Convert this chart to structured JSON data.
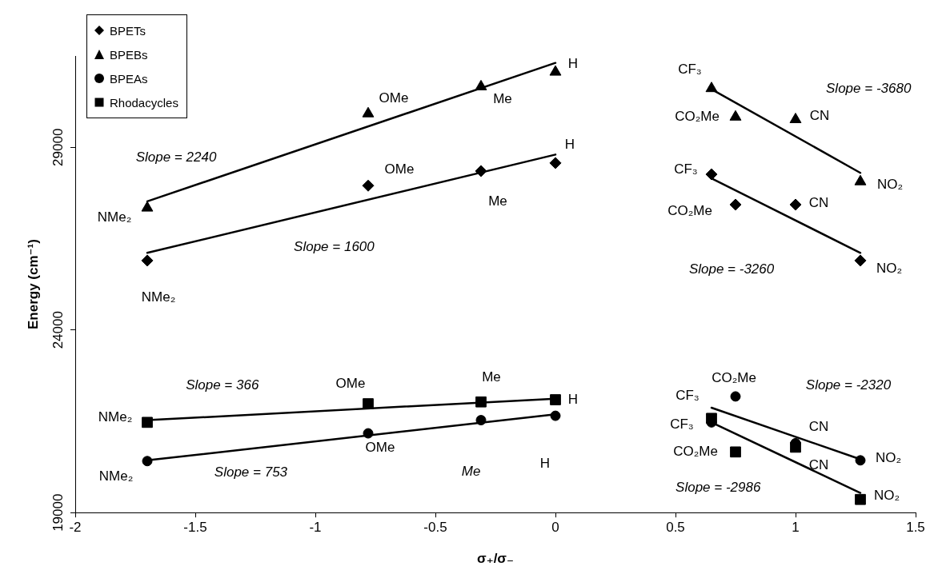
{
  "chart_data": {
    "type": "scatter",
    "xlabel": "σ₊/σ₋",
    "ylabel": "Energy (cm⁻¹)",
    "x": [
      -1.7,
      -0.78,
      -0.31,
      0,
      0.65,
      0.75,
      1,
      1.27
    ],
    "xlim": [
      -2,
      1.5
    ],
    "xticks": [
      -2,
      -1.5,
      -1,
      -0.5,
      0,
      0.5,
      1,
      1.5
    ],
    "ylim": [
      19000,
      31500
    ],
    "yticks": [
      19000,
      24000,
      29000
    ],
    "grid": false,
    "legend": "top left",
    "series": [
      {
        "name": "BPETs",
        "color": "#000000",
        "marker": "diamond",
        "values": [
          25900,
          27950,
          28350,
          28570,
          28260,
          27430,
          27430,
          25900
        ]
      },
      {
        "name": "BPEBs",
        "color": "#000000",
        "marker": "triangle",
        "values": [
          27340,
          29920,
          30660,
          31060,
          30610,
          29830,
          29760,
          28060
        ]
      },
      {
        "name": "BPEAs",
        "color": "#000000",
        "marker": "circle",
        "values": [
          20410,
          21170,
          21530,
          21650,
          21470,
          22180,
          20900,
          20430
        ]
      },
      {
        "name": "Rhodacycles",
        "color": "#000000",
        "marker": "square",
        "values": [
          21470,
          21980,
          22030,
          22090,
          21580,
          20660,
          20790,
          19360
        ]
      },
      {
        "type": "line",
        "color": "#000000",
        "marker": "none",
        "x": [
          -1.7,
          0
        ],
        "values": [
          27520,
          31310
        ]
      },
      {
        "type": "line",
        "color": "#000000",
        "marker": "none",
        "x": [
          -1.7,
          0
        ],
        "values": [
          26110,
          28800
        ]
      },
      {
        "type": "line",
        "color": "#000000",
        "marker": "none",
        "x": [
          0.65,
          1.27
        ],
        "values": [
          30590,
          28300
        ]
      },
      {
        "type": "line",
        "color": "#000000",
        "marker": "none",
        "x": [
          0.65,
          1.27
        ],
        "values": [
          28150,
          26110
        ]
      },
      {
        "type": "line",
        "color": "#000000",
        "marker": "none",
        "x": [
          -1.7,
          0
        ],
        "values": [
          21530,
          22120
        ]
      },
      {
        "type": "line",
        "color": "#000000",
        "marker": "none",
        "x": [
          -1.7,
          0
        ],
        "values": [
          20430,
          21690
        ]
      },
      {
        "type": "line",
        "color": "#000000",
        "marker": "none",
        "x": [
          0.65,
          1.27
        ],
        "values": [
          21870,
          20460
        ]
      },
      {
        "type": "line",
        "color": "#000000",
        "marker": "none",
        "x": [
          0.65,
          1.27
        ],
        "values": [
          21470,
          19540
        ]
      }
    ],
    "annotations": [
      {
        "text": "NMe₂",
        "x": -1.7,
        "y": 27340
      },
      {
        "text": "OMe",
        "x": -0.78,
        "y": 29920
      },
      {
        "text": "Me",
        "x": -0.31,
        "y": 30660
      },
      {
        "text": "H",
        "x": 0,
        "y": 31060
      },
      {
        "text": "CF₃",
        "x": 0.65,
        "y": 30610
      },
      {
        "text": "CO₂Me",
        "x": 0.75,
        "y": 29830
      },
      {
        "text": "CN",
        "x": 1,
        "y": 29760
      },
      {
        "text": "NO₂",
        "x": 1.27,
        "y": 28060
      },
      {
        "text": "NMe₂",
        "x": -1.7,
        "y": 25900
      },
      {
        "text": "OMe",
        "x": -0.78,
        "y": 27950
      },
      {
        "text": "Me",
        "x": -0.31,
        "y": 28350
      },
      {
        "text": "H",
        "x": 0,
        "y": 28570
      },
      {
        "text": "CF₃",
        "x": 0.65,
        "y": 28260
      },
      {
        "text": "CO₂Me",
        "x": 0.75,
        "y": 27430
      },
      {
        "text": "CN",
        "x": 1,
        "y": 27430
      },
      {
        "text": "NO₂",
        "x": 1.27,
        "y": 25900
      },
      {
        "text": "NMe₂",
        "x": -1.7,
        "y": 21470
      },
      {
        "text": "OMe",
        "x": -0.78,
        "y": 21980
      },
      {
        "text": "Me",
        "x": -0.31,
        "y": 22030
      },
      {
        "text": "H",
        "x": 0,
        "y": 22090
      },
      {
        "text": "CF₃",
        "x": 0.65,
        "y": 21580
      },
      {
        "text": "CO₂Me",
        "x": 0.75,
        "y": 20660
      },
      {
        "text": "CN",
        "x": 1,
        "y": 20790
      },
      {
        "text": "NO₂",
        "x": 1.27,
        "y": 19360
      },
      {
        "text": "NMe₂",
        "x": -1.7,
        "y": 20410
      },
      {
        "text": "OMe",
        "x": -0.78,
        "y": 21170
      },
      "Me",
      {
        "text": "H",
        "x": 0,
        "y": 21650
      },
      {
        "text": "CF₃",
        "x": 0.65,
        "y": 21870
      },
      {
        "text": "CO₂Me",
        "x": 0.75,
        "y": 22180
      },
      {
        "text": "CN",
        "x": 1,
        "y": 20900
      },
      {
        "text": "NO₂",
        "x": 1.27,
        "y": 20430
      },
      "Slope = 2240",
      "Slope = 1600",
      "Slope = -3680",
      "Slope = -3260",
      "Slope = 366",
      "Slope = 753",
      "Slope = -2320",
      "Slope = -2986"
    ]
  }
}
